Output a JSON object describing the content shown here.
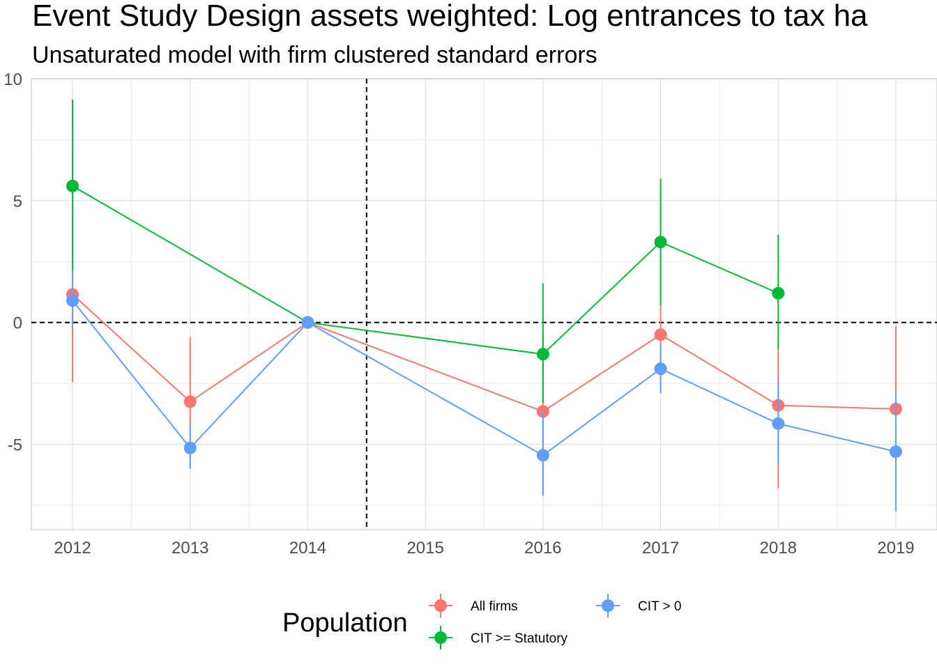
{
  "chart_data": {
    "type": "line",
    "title": "Event Study Design assets weighted: Log entrances to tax ha",
    "subtitle": "Unsaturated model with firm clustered standard errors",
    "x_ticks": [
      "2012",
      "2013",
      "2014",
      "2015",
      "2016",
      "2017",
      "2018",
      "2019"
    ],
    "y_ticks": [
      "10",
      "5",
      "0",
      "-5"
    ],
    "y_tick_values": [
      10,
      5,
      0,
      -5
    ],
    "xlim": [
      2011.65,
      2019.35
    ],
    "ylim": [
      -8.5,
      10
    ],
    "reference_lines": {
      "vertical_x": 2014.5,
      "horizontal_y": 0,
      "style": "dashed"
    },
    "grid": true,
    "legend": {
      "title": "Population",
      "position": "bottom"
    },
    "series": [
      {
        "name": "All firms",
        "color": "#F8766D",
        "x": [
          2012,
          2013,
          2014,
          2016,
          2017,
          2018,
          2019
        ],
        "y": [
          1.15,
          -3.25,
          0,
          -3.65,
          -0.5,
          -3.4,
          -3.55
        ],
        "lower": [
          -2.45,
          -5.9,
          0,
          -7.0,
          -2.9,
          -6.8,
          -7.0
        ],
        "upper": [
          2.1,
          -0.6,
          0,
          -0.5,
          0.7,
          -1.1,
          -0.15
        ]
      },
      {
        "name": "CIT >= Statutory",
        "color": "#00BA38",
        "x": [
          2012,
          2014,
          2016,
          2017,
          2018
        ],
        "y": [
          5.6,
          0,
          -1.3,
          3.3,
          1.2
        ],
        "lower": [
          2.1,
          0,
          -3.3,
          0.7,
          -1.1
        ],
        "upper": [
          9.15,
          0,
          1.6,
          5.9,
          3.6
        ]
      },
      {
        "name": "CIT > 0",
        "color": "#619CFF",
        "x": [
          2012,
          2013,
          2014,
          2016,
          2017,
          2018,
          2019
        ],
        "y": [
          0.9,
          -5.15,
          0,
          -5.45,
          -1.9,
          -4.15,
          -5.3
        ],
        "lower": [
          -0.2,
          -6.0,
          0,
          -7.1,
          -2.9,
          -5.8,
          -7.75
        ],
        "upper": [
          2.1,
          -4.2,
          0,
          -3.7,
          -0.9,
          -2.4,
          -2.9
        ]
      }
    ]
  }
}
